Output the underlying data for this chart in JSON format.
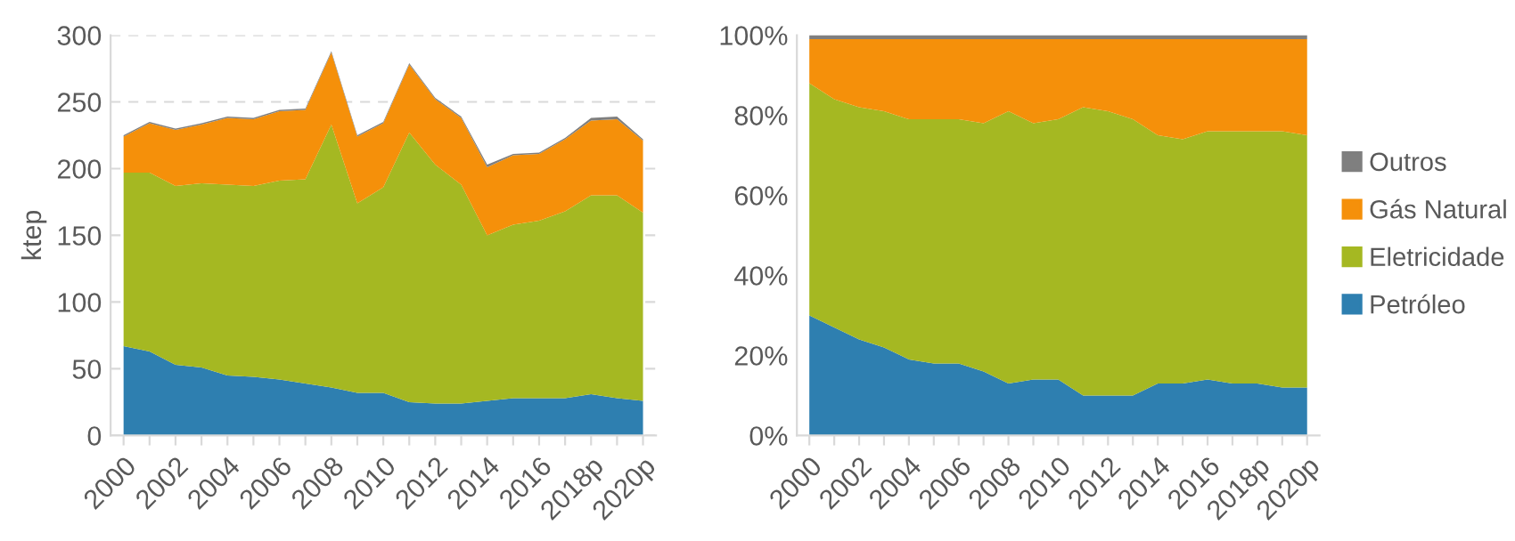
{
  "chart_data": [
    {
      "type": "area",
      "stacked": true,
      "ylabel": "ktep",
      "categories": [
        "2000",
        null,
        "2002",
        null,
        "2004",
        null,
        "2006",
        null,
        "2008",
        null,
        "2010",
        null,
        "2012",
        null,
        "2014",
        null,
        "2016",
        null,
        "2018p",
        null,
        "2020p"
      ],
      "ylim": [
        0,
        300
      ],
      "yticks": [
        0,
        50,
        100,
        150,
        200,
        250,
        300
      ],
      "grid": "y",
      "legend": false,
      "series": [
        {
          "color": "#2e7fb0",
          "values": [
            67,
            63,
            53,
            51,
            45,
            44,
            42,
            39,
            36,
            32,
            32,
            25,
            24,
            24,
            26,
            28,
            28,
            28,
            31,
            28,
            26
          ]
        },
        {
          "color": "#a5b822",
          "values": [
            130,
            134,
            134,
            138,
            143,
            143,
            149,
            153,
            197,
            142,
            154,
            202,
            179,
            164,
            124,
            130,
            133,
            140,
            149,
            152,
            141
          ]
        },
        {
          "color": "#f5900a",
          "values": [
            27,
            37,
            42,
            44,
            50,
            50,
            52,
            52,
            54,
            50,
            48,
            51,
            49,
            50,
            51,
            52,
            50,
            54,
            56,
            57,
            54
          ]
        },
        {
          "color": "#7f7f7f",
          "values": [
            1,
            1,
            1,
            1,
            1,
            1,
            1,
            1,
            1,
            1,
            1,
            1,
            1,
            1,
            2,
            1,
            1,
            1,
            2,
            2,
            1
          ]
        }
      ]
    },
    {
      "type": "area",
      "stacked": true,
      "categories": [
        "2000",
        null,
        "2002",
        null,
        "2004",
        null,
        "2006",
        null,
        "2008",
        null,
        "2010",
        null,
        "2012",
        null,
        "2014",
        null,
        "2016",
        null,
        "2018p",
        null,
        "2020p"
      ],
      "ylim": [
        0,
        100
      ],
      "yticks": [
        {
          "value": 0,
          "label": "0%"
        },
        {
          "value": 20,
          "label": "20%"
        },
        {
          "value": 40,
          "label": "40%"
        },
        {
          "value": 60,
          "label": "60%"
        },
        {
          "value": 80,
          "label": "80%"
        },
        {
          "value": 100,
          "label": "100%"
        }
      ],
      "grid": false,
      "legend": "right",
      "series": [
        {
          "name": "Petróleo",
          "color": "#2e7fb0",
          "values": [
            30,
            27,
            24,
            22,
            19,
            18,
            18,
            16,
            13,
            14,
            14,
            10,
            10,
            10,
            13,
            13,
            14,
            13,
            13,
            12,
            12
          ]
        },
        {
          "name": "Eletricidade",
          "color": "#a5b822",
          "values": [
            58,
            57,
            58,
            59,
            60,
            61,
            61,
            62,
            68,
            64,
            65,
            72,
            71,
            69,
            62,
            61,
            62,
            63,
            63,
            64,
            63
          ]
        },
        {
          "name": "Gás Natural",
          "color": "#f5900a",
          "values": [
            11,
            15,
            17,
            18,
            20,
            20,
            20,
            21,
            18,
            21,
            20,
            17,
            18,
            20,
            24,
            25,
            23,
            23,
            23,
            23,
            24
          ]
        },
        {
          "name": "Outros",
          "color": "#7f7f7f",
          "values": [
            1,
            1,
            1,
            1,
            1,
            1,
            1,
            1,
            1,
            1,
            1,
            1,
            1,
            1,
            1,
            1,
            1,
            1,
            1,
            1,
            1
          ]
        }
      ]
    }
  ]
}
